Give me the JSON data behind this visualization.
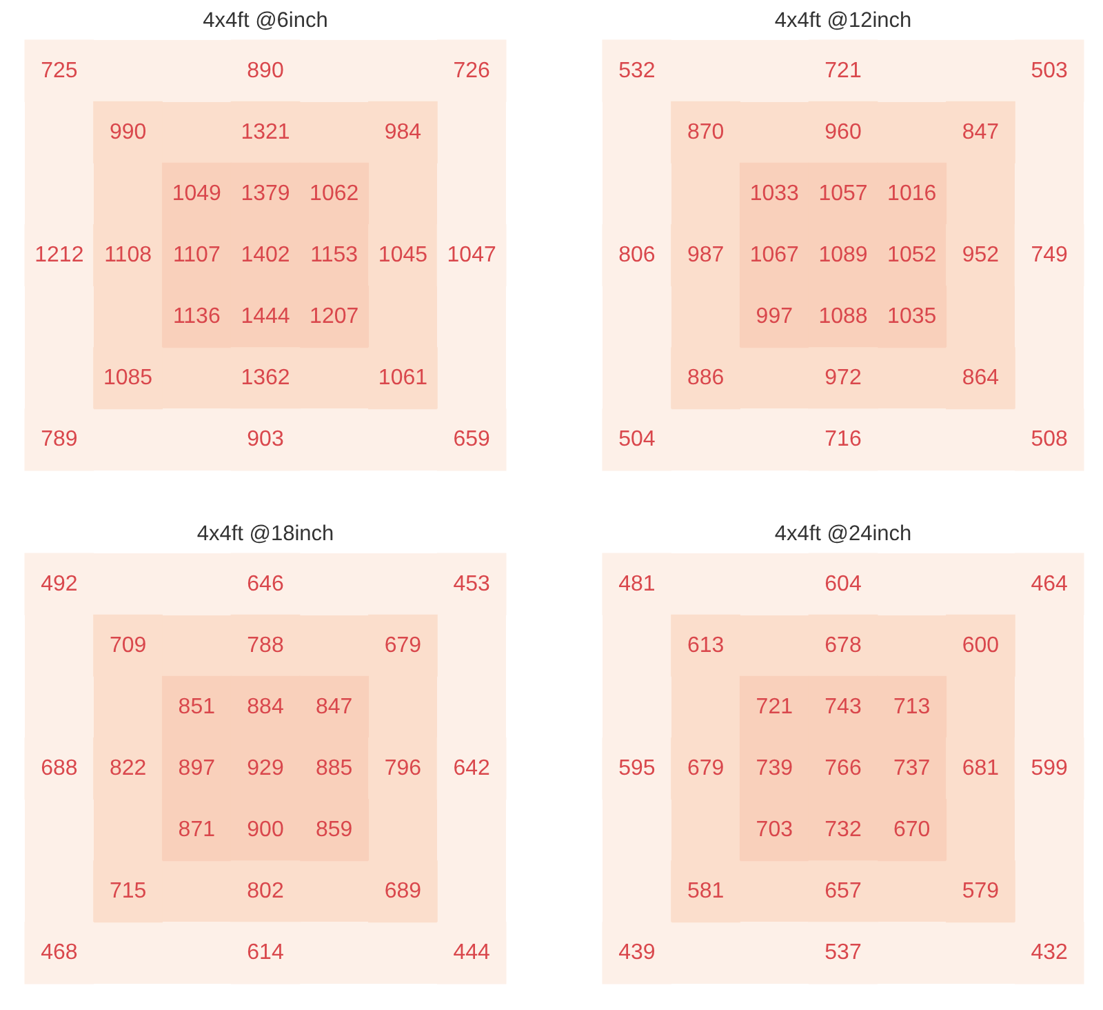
{
  "chart_data": [
    {
      "type": "other",
      "title": "4x4ft @6inch",
      "values": [
        725,
        null,
        null,
        890,
        null,
        null,
        726,
        null,
        990,
        null,
        1321,
        null,
        984,
        null,
        null,
        null,
        1049,
        1379,
        1062,
        null,
        null,
        1212,
        1108,
        1107,
        1402,
        1153,
        1045,
        1047,
        null,
        null,
        1136,
        1444,
        1207,
        null,
        null,
        null,
        1085,
        null,
        1362,
        null,
        1061,
        null,
        789,
        null,
        null,
        903,
        null,
        null,
        659
      ],
      "data_labels": true
    },
    {
      "type": "other",
      "title": "4x4ft @12inch",
      "values": [
        532,
        null,
        null,
        721,
        null,
        null,
        503,
        null,
        870,
        null,
        960,
        null,
        847,
        null,
        null,
        null,
        1033,
        1057,
        1016,
        null,
        null,
        806,
        987,
        1067,
        1089,
        1052,
        952,
        749,
        null,
        null,
        997,
        1088,
        1035,
        null,
        null,
        null,
        886,
        null,
        972,
        null,
        864,
        null,
        504,
        null,
        null,
        716,
        null,
        null,
        508
      ],
      "data_labels": true
    },
    {
      "type": "other",
      "title": "4x4ft @18inch",
      "values": [
        492,
        null,
        null,
        646,
        null,
        null,
        453,
        null,
        709,
        null,
        788,
        null,
        679,
        null,
        null,
        null,
        851,
        884,
        847,
        null,
        null,
        688,
        822,
        897,
        929,
        885,
        796,
        642,
        null,
        null,
        871,
        900,
        859,
        null,
        null,
        null,
        715,
        null,
        802,
        null,
        689,
        null,
        468,
        null,
        null,
        614,
        null,
        null,
        444
      ],
      "data_labels": true
    },
    {
      "type": "other",
      "title": "4x4ft @24inch",
      "values": [
        481,
        null,
        null,
        604,
        null,
        null,
        464,
        null,
        613,
        null,
        678,
        null,
        600,
        null,
        null,
        null,
        721,
        743,
        713,
        null,
        null,
        595,
        679,
        739,
        766,
        737,
        681,
        599,
        null,
        null,
        703,
        732,
        670,
        null,
        null,
        null,
        581,
        null,
        657,
        null,
        579,
        null,
        439,
        null,
        null,
        537,
        null,
        null,
        432
      ],
      "data_labels": true
    }
  ]
}
